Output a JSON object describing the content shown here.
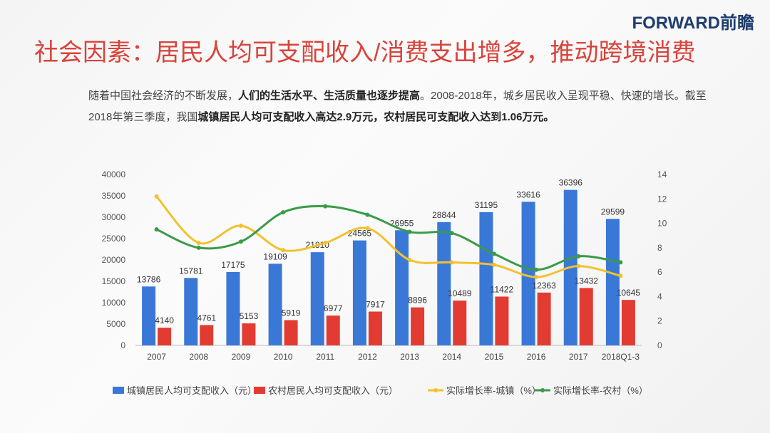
{
  "logo": "FORWARD前瞻",
  "title": "社会因素：居民人均可支配收入/消费支出增多，推动跨境消费",
  "intro": {
    "p1": "随着中国社会经济的不断发展，",
    "b1": "人们的生活水平、生活质量也逐步提高",
    "p2": "。2008-2018年，城乡居民收入呈现平稳、快速的增长。截至2018年第三季度，我国",
    "b2": "城镇居民人均可支配收入高达2.9万元，农村居民可支配收入达到1.06万元。"
  },
  "chart_data": {
    "type": "bar+line",
    "categories": [
      "2007",
      "2008",
      "2009",
      "2010",
      "2011",
      "2012",
      "2013",
      "2014",
      "2015",
      "2016",
      "2017",
      "2018Q1-3"
    ],
    "left_axis": {
      "ylim": [
        0,
        40000
      ],
      "ticks": [
        0,
        5000,
        10000,
        15000,
        20000,
        25000,
        30000,
        35000,
        40000
      ]
    },
    "right_axis": {
      "ylim": [
        0,
        14
      ],
      "ticks": [
        0,
        2,
        4,
        6,
        8,
        10,
        12,
        14
      ]
    },
    "series": [
      {
        "name": "城镇居民人均可支配收入（元）",
        "type": "bar",
        "axis": "left",
        "color": "#3a78d8",
        "values": [
          13786,
          15781,
          17175,
          19109,
          21810,
          24565,
          26955,
          28844,
          31195,
          33616,
          36396,
          29599
        ]
      },
      {
        "name": "农村居民人均可支配收入（元）",
        "type": "bar",
        "axis": "left",
        "color": "#e23b32",
        "values": [
          4140,
          4761,
          5153,
          5919,
          6977,
          7917,
          8896,
          10489,
          11422,
          12363,
          13432,
          10645
        ]
      },
      {
        "name": "实际增长率-城镇（%）",
        "type": "line",
        "axis": "right",
        "color": "#f2c12e",
        "values": [
          12.2,
          8.4,
          9.8,
          7.8,
          8.4,
          9.6,
          7.0,
          6.8,
          6.6,
          5.6,
          6.5,
          5.7
        ]
      },
      {
        "name": "实际增长率-农村（%）",
        "type": "line",
        "axis": "right",
        "color": "#3a9a48",
        "values": [
          9.5,
          8.0,
          8.5,
          10.9,
          11.4,
          10.7,
          9.3,
          9.2,
          7.5,
          6.2,
          7.3,
          6.8
        ]
      }
    ],
    "legend": "bottom"
  }
}
